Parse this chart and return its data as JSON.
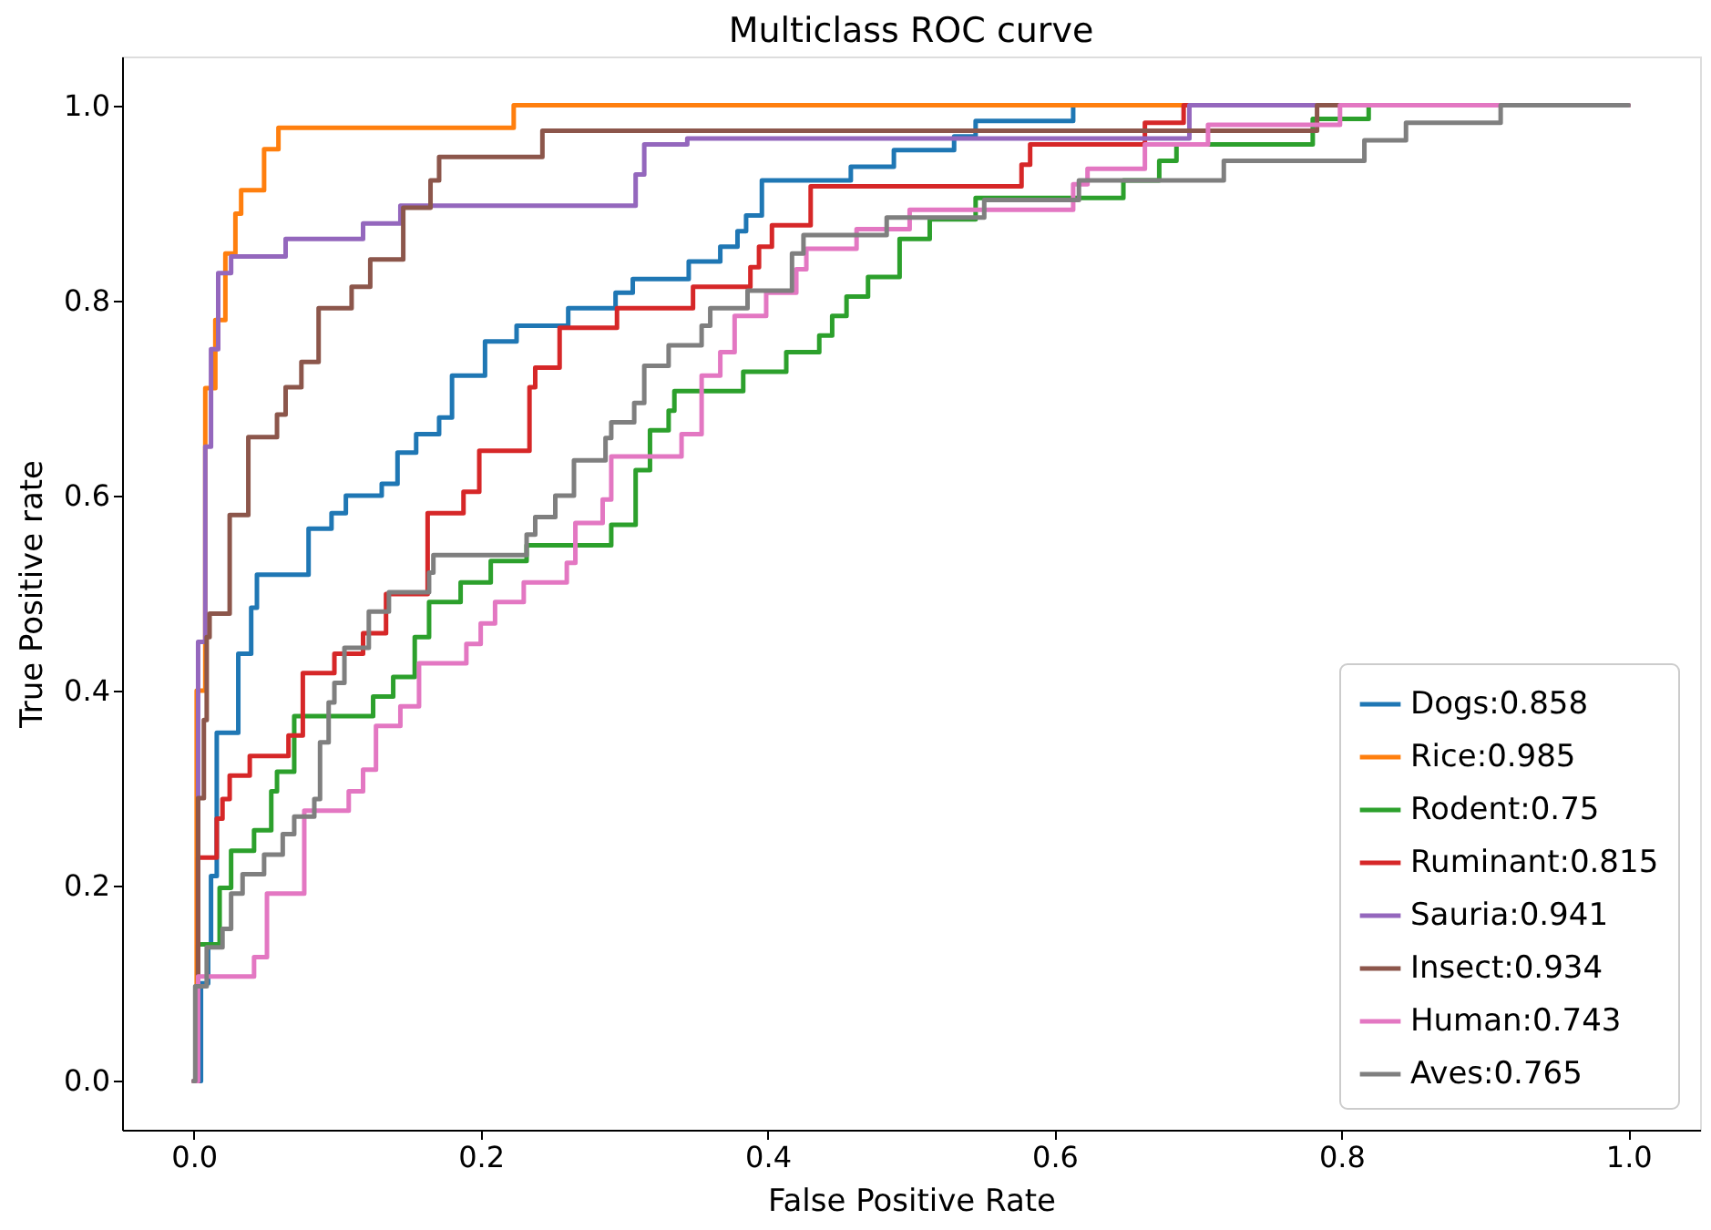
{
  "chart_data": {
    "type": "step",
    "title": "Multiclass ROC curve",
    "xlabel": "False Positive Rate",
    "ylabel": "True Positive rate",
    "xlim": [
      -0.05,
      1.05
    ],
    "ylim": [
      -0.05,
      1.05
    ],
    "xticks": [
      {
        "value": 0,
        "label": "0.0"
      },
      {
        "value": 0.2,
        "label": "0.2"
      },
      {
        "value": 0.4,
        "label": "0.4"
      },
      {
        "value": 0.6,
        "label": "0.6"
      },
      {
        "value": 0.8,
        "label": "0.8"
      },
      {
        "value": 1,
        "label": "1.0"
      }
    ],
    "yticks": [
      {
        "value": 0,
        "label": "0.0"
      },
      {
        "value": 0.2,
        "label": "0.2"
      },
      {
        "value": 0.4,
        "label": "0.4"
      },
      {
        "value": 0.6,
        "label": "0.6"
      },
      {
        "value": 0.8,
        "label": "0.8"
      },
      {
        "value": 1,
        "label": "1.0"
      }
    ],
    "grid": false,
    "legend": "bottom right",
    "line_style": "solid",
    "marker": "none",
    "series": [
      {
        "name": "Dogs:0.858",
        "color": "#1f77b4",
        "x": [
          0,
          0.005,
          0.01,
          0.012,
          0.016,
          0.031,
          0.04,
          0.044,
          0.08,
          0.096,
          0.106,
          0.131,
          0.142,
          0.155,
          0.171,
          0.18,
          0.203,
          0.225,
          0.261,
          0.294,
          0.306,
          0.345,
          0.367,
          0.379,
          0.385,
          0.396,
          0.458,
          0.488,
          0.53,
          0.545,
          0.613,
          1
        ],
        "values": [
          0,
          0.1,
          0.14,
          0.21,
          0.357,
          0.438,
          0.485,
          0.519,
          0.566,
          0.582,
          0.6,
          0.612,
          0.644,
          0.663,
          0.68,
          0.723,
          0.758,
          0.774,
          0.792,
          0.808,
          0.822,
          0.84,
          0.855,
          0.871,
          0.887,
          0.923,
          0.937,
          0.954,
          0.968,
          0.984,
          1,
          1
        ]
      },
      {
        "name": "Rice:0.985",
        "color": "#ff7f0e",
        "x": [
          0,
          0.002,
          0.008,
          0.015,
          0.022,
          0.029,
          0.033,
          0.049,
          0.059,
          0.223,
          1
        ],
        "values": [
          0,
          0.4,
          0.71,
          0.78,
          0.848,
          0.889,
          0.913,
          0.955,
          0.977,
          1,
          1
        ]
      },
      {
        "name": "Rodent:0.75",
        "color": "#2ca02c",
        "x": [
          0,
          0.003,
          0.018,
          0.026,
          0.042,
          0.054,
          0.058,
          0.07,
          0.125,
          0.139,
          0.154,
          0.164,
          0.186,
          0.207,
          0.232,
          0.291,
          0.308,
          0.318,
          0.331,
          0.335,
          0.383,
          0.413,
          0.436,
          0.445,
          0.455,
          0.47,
          0.492,
          0.513,
          0.545,
          0.648,
          0.673,
          0.685,
          0.78,
          0.819,
          1
        ],
        "values": [
          0,
          0.14,
          0.198,
          0.236,
          0.257,
          0.297,
          0.317,
          0.374,
          0.394,
          0.414,
          0.455,
          0.491,
          0.511,
          0.533,
          0.549,
          0.57,
          0.626,
          0.667,
          0.687,
          0.707,
          0.727,
          0.747,
          0.764,
          0.784,
          0.804,
          0.824,
          0.863,
          0.883,
          0.905,
          0.923,
          0.943,
          0.96,
          0.986,
          1,
          1
        ]
      },
      {
        "name": "Ruminant:0.815",
        "color": "#d62728",
        "x": [
          0,
          0.003,
          0.016,
          0.02,
          0.025,
          0.039,
          0.066,
          0.076,
          0.098,
          0.118,
          0.134,
          0.163,
          0.188,
          0.199,
          0.234,
          0.238,
          0.255,
          0.295,
          0.348,
          0.388,
          0.394,
          0.403,
          0.43,
          0.577,
          0.583,
          0.663,
          0.69,
          1
        ],
        "values": [
          0,
          0.229,
          0.269,
          0.289,
          0.313,
          0.333,
          0.354,
          0.418,
          0.438,
          0.459,
          0.499,
          0.582,
          0.604,
          0.646,
          0.711,
          0.731,
          0.772,
          0.792,
          0.814,
          0.834,
          0.855,
          0.877,
          0.917,
          0.939,
          0.96,
          0.982,
          1,
          1
        ]
      },
      {
        "name": "Sauria:0.941",
        "color": "#9467bd",
        "x": [
          0,
          0.003,
          0.008,
          0.012,
          0.017,
          0.026,
          0.064,
          0.118,
          0.144,
          0.308,
          0.314,
          0.344,
          0.694,
          1
        ],
        "values": [
          0,
          0.45,
          0.65,
          0.75,
          0.828,
          0.845,
          0.863,
          0.879,
          0.897,
          0.929,
          0.96,
          0.966,
          1,
          1
        ]
      },
      {
        "name": "Insect:0.934",
        "color": "#8c564b",
        "x": [
          0,
          0.003,
          0.007,
          0.009,
          0.011,
          0.025,
          0.038,
          0.058,
          0.064,
          0.075,
          0.087,
          0.11,
          0.123,
          0.146,
          0.165,
          0.171,
          0.243,
          0.783,
          1
        ],
        "values": [
          0,
          0.29,
          0.37,
          0.455,
          0.479,
          0.58,
          0.66,
          0.683,
          0.711,
          0.737,
          0.792,
          0.814,
          0.842,
          0.895,
          0.923,
          0.947,
          0.974,
          1,
          1
        ]
      },
      {
        "name": "Human:0.743",
        "color": "#e377c2",
        "x": [
          0,
          0.003,
          0.042,
          0.051,
          0.077,
          0.108,
          0.118,
          0.127,
          0.144,
          0.157,
          0.19,
          0.2,
          0.21,
          0.23,
          0.26,
          0.266,
          0.285,
          0.291,
          0.34,
          0.354,
          0.367,
          0.377,
          0.399,
          0.42,
          0.427,
          0.462,
          0.499,
          0.613,
          0.623,
          0.663,
          0.707,
          0.799,
          1
        ],
        "values": [
          0,
          0.107,
          0.127,
          0.192,
          0.277,
          0.297,
          0.319,
          0.364,
          0.384,
          0.428,
          0.448,
          0.469,
          0.491,
          0.511,
          0.531,
          0.572,
          0.596,
          0.64,
          0.663,
          0.723,
          0.747,
          0.784,
          0.808,
          0.832,
          0.853,
          0.873,
          0.893,
          0.919,
          0.935,
          0.96,
          0.98,
          1,
          1
        ]
      },
      {
        "name": "Aves:0.765",
        "color": "#7f7f7f",
        "x": [
          0,
          0.001,
          0.009,
          0.02,
          0.026,
          0.034,
          0.049,
          0.062,
          0.07,
          0.084,
          0.088,
          0.094,
          0.098,
          0.105,
          0.122,
          0.136,
          0.164,
          0.167,
          0.232,
          0.238,
          0.252,
          0.265,
          0.287,
          0.291,
          0.307,
          0.314,
          0.331,
          0.354,
          0.36,
          0.386,
          0.417,
          0.425,
          0.483,
          0.551,
          0.617,
          0.718,
          0.816,
          0.845,
          0.911,
          1
        ],
        "values": [
          0,
          0.097,
          0.137,
          0.156,
          0.192,
          0.212,
          0.232,
          0.253,
          0.271,
          0.289,
          0.347,
          0.388,
          0.408,
          0.444,
          0.481,
          0.501,
          0.521,
          0.539,
          0.56,
          0.578,
          0.6,
          0.636,
          0.659,
          0.675,
          0.695,
          0.733,
          0.754,
          0.774,
          0.792,
          0.81,
          0.848,
          0.867,
          0.885,
          0.903,
          0.923,
          0.943,
          0.964,
          0.982,
          1,
          1
        ]
      }
    ]
  }
}
